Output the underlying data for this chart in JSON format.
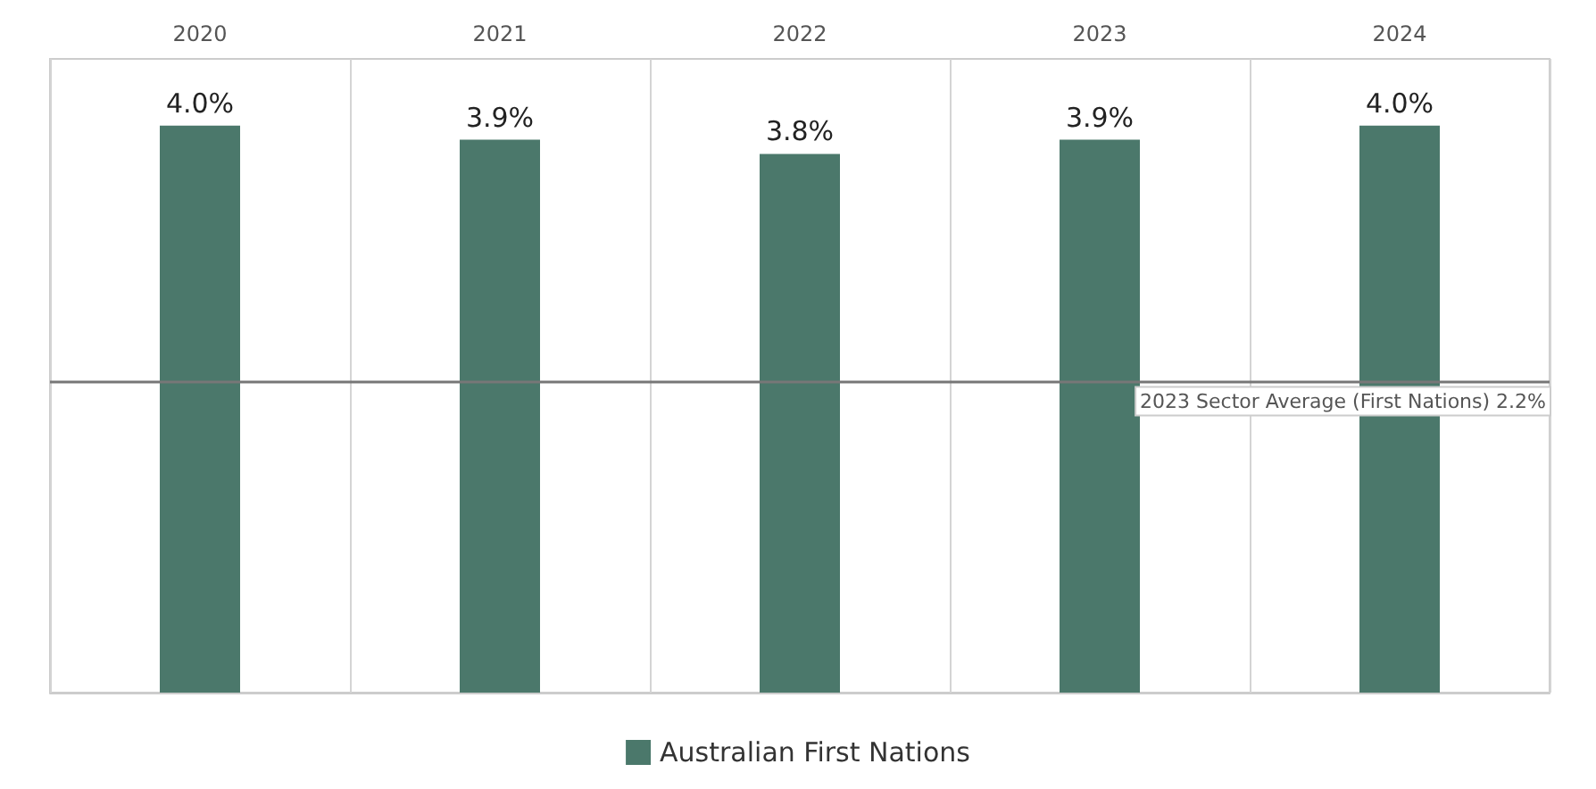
{
  "chart_data": {
    "type": "bar",
    "categories": [
      "2020",
      "2021",
      "2022",
      "2023",
      "2024"
    ],
    "series": [
      {
        "name": "Australian First Nations",
        "color": "#4b786b",
        "values": [
          4.0,
          3.9,
          3.8,
          3.9,
          4.0
        ],
        "value_labels": [
          "4.0%",
          "3.9%",
          "3.8%",
          "3.9%",
          "4.0%"
        ]
      }
    ],
    "ylim": [
      0,
      4.47
    ],
    "tick_labels": "x",
    "grid": "x",
    "legend": "bottom",
    "ref_lines": [
      {
        "axis": "y",
        "value": 2.2,
        "label": "2023 Sector Average (First Nations) 2.2%",
        "color": "#777777"
      }
    ]
  }
}
